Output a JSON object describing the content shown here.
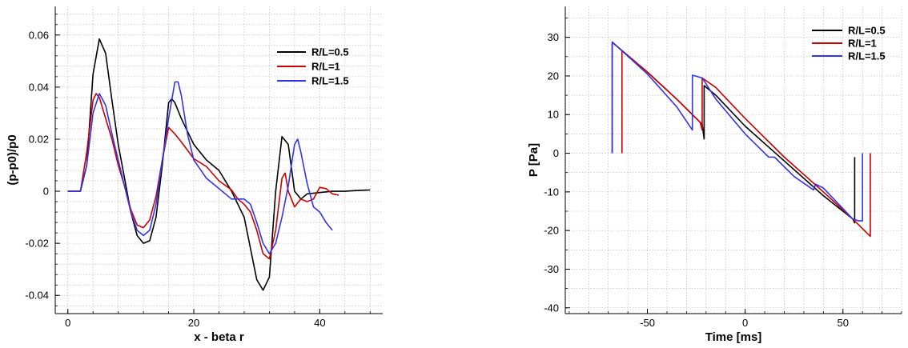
{
  "chart_data": [
    {
      "type": "line",
      "xlabel": "x - beta r",
      "ylabel": "(p-p0)/p0",
      "xlim": [
        -2,
        50
      ],
      "ylim": [
        -0.047,
        0.071
      ],
      "xticks": [
        0,
        20,
        40
      ],
      "xtick_labels": [
        "0",
        "20",
        "40"
      ],
      "yticks": [
        -0.04,
        -0.02,
        0,
        0.02,
        0.04,
        0.06
      ],
      "ytick_labels": [
        "-0.04",
        "-0.02",
        "0",
        "0.02",
        "0.04",
        "0.06"
      ],
      "grid": true,
      "legend_position": "top-right",
      "series": [
        {
          "name": "R/L=0.5",
          "color": "#000000",
          "points": [
            [
              0,
              0
            ],
            [
              2,
              0
            ],
            [
              3,
              0.01
            ],
            [
              4,
              0.045
            ],
            [
              5,
              0.0585
            ],
            [
              6,
              0.053
            ],
            [
              7,
              0.035
            ],
            [
              8,
              0.018
            ],
            [
              9,
              0.005
            ],
            [
              10,
              -0.008
            ],
            [
              11,
              -0.017
            ],
            [
              12,
              -0.02
            ],
            [
              13,
              -0.019
            ],
            [
              14,
              -0.01
            ],
            [
              15,
              0.01
            ],
            [
              16,
              0.034
            ],
            [
              16.5,
              0.0355
            ],
            [
              17,
              0.034
            ],
            [
              18,
              0.028
            ],
            [
              20,
              0.018
            ],
            [
              22,
              0.012
            ],
            [
              24,
              0.008
            ],
            [
              26,
              0.0
            ],
            [
              28,
              -0.01
            ],
            [
              29,
              -0.022
            ],
            [
              30,
              -0.034
            ],
            [
              31,
              -0.038
            ],
            [
              32,
              -0.033
            ],
            [
              33,
              0.0
            ],
            [
              34,
              0.021
            ],
            [
              35,
              0.018
            ],
            [
              36,
              0.0
            ],
            [
              37,
              -0.003
            ],
            [
              38,
              -0.001
            ],
            [
              40,
              -0.0005
            ],
            [
              42,
              0.0
            ],
            [
              44,
              0.0
            ],
            [
              46,
              0.0003
            ],
            [
              48,
              0.0005
            ]
          ]
        },
        {
          "name": "R/L=1",
          "color": "#cc0000",
          "points": [
            [
              0,
              0
            ],
            [
              2,
              0.0
            ],
            [
              3,
              0.015
            ],
            [
              4,
              0.035
            ],
            [
              4.5,
              0.0375
            ],
            [
              5,
              0.036
            ],
            [
              6,
              0.028
            ],
            [
              7,
              0.02
            ],
            [
              8,
              0.01
            ],
            [
              9,
              0.002
            ],
            [
              10,
              -0.007
            ],
            [
              11,
              -0.013
            ],
            [
              12,
              -0.014
            ],
            [
              13,
              -0.011
            ],
            [
              14,
              -0.002
            ],
            [
              15,
              0.012
            ],
            [
              16,
              0.0245
            ],
            [
              17,
              0.022
            ],
            [
              18,
              0.019
            ],
            [
              20,
              0.0125
            ],
            [
              22,
              0.0095
            ],
            [
              24,
              0.004
            ],
            [
              26,
              0.0005
            ],
            [
              27,
              -0.003
            ],
            [
              28,
              -0.005
            ],
            [
              29,
              -0.008
            ],
            [
              30,
              -0.015
            ],
            [
              31,
              -0.024
            ],
            [
              32,
              -0.026
            ],
            [
              33,
              -0.015
            ],
            [
              34,
              0.005
            ],
            [
              34.5,
              0.007
            ],
            [
              35,
              0.0
            ],
            [
              36,
              -0.006
            ],
            [
              37,
              -0.003
            ],
            [
              38,
              -0.004
            ],
            [
              39,
              -0.003
            ],
            [
              40,
              0.0015
            ],
            [
              41,
              0.001
            ],
            [
              42,
              -0.001
            ],
            [
              43,
              -0.0015
            ]
          ]
        },
        {
          "name": "R/L=1.5",
          "color": "#3333ee",
          "points": [
            [
              0,
              0
            ],
            [
              2,
              0.0
            ],
            [
              3,
              0.01
            ],
            [
              4,
              0.03
            ],
            [
              5,
              0.0375
            ],
            [
              6,
              0.033
            ],
            [
              7,
              0.022
            ],
            [
              8,
              0.012
            ],
            [
              9,
              0.002
            ],
            [
              10,
              -0.008
            ],
            [
              11,
              -0.015
            ],
            [
              12,
              -0.017
            ],
            [
              13,
              -0.015
            ],
            [
              14,
              -0.005
            ],
            [
              15,
              0.012
            ],
            [
              16,
              0.028
            ],
            [
              17,
              0.042
            ],
            [
              17.5,
              0.042
            ],
            [
              18,
              0.037
            ],
            [
              19,
              0.022
            ],
            [
              20,
              0.012
            ],
            [
              22,
              0.005
            ],
            [
              24,
              0.001
            ],
            [
              26,
              -0.003
            ],
            [
              28,
              -0.003
            ],
            [
              29,
              -0.005
            ],
            [
              30,
              -0.012
            ],
            [
              31,
              -0.02
            ],
            [
              32,
              -0.024
            ],
            [
              33,
              -0.02
            ],
            [
              34,
              -0.01
            ],
            [
              35,
              0.002
            ],
            [
              36,
              0.018
            ],
            [
              36.5,
              0.02
            ],
            [
              37,
              0.015
            ],
            [
              38,
              0.003
            ],
            [
              39,
              -0.006
            ],
            [
              40,
              -0.008
            ],
            [
              41,
              -0.012
            ],
            [
              42,
              -0.015
            ]
          ]
        }
      ]
    },
    {
      "type": "line",
      "xlabel": "Time [ms]",
      "ylabel": "P [Pa]",
      "xlim": [
        -92,
        80
      ],
      "ylim": [
        -41.5,
        38
      ],
      "xticks": [
        -50,
        0,
        50
      ],
      "xtick_labels": [
        "-50",
        "0",
        "50"
      ],
      "yticks": [
        -40,
        -30,
        -20,
        -10,
        0,
        10,
        20,
        30
      ],
      "ytick_labels": [
        "-40",
        "-30",
        "-20",
        "-10",
        "0",
        "10",
        "20",
        "30"
      ],
      "grid": true,
      "legend_position": "top-right",
      "series": [
        {
          "name": "R/L=0.5",
          "color": "#000000",
          "points": [
            [
              -68,
              0
            ],
            [
              -68,
              28.7
            ],
            [
              -50,
              21
            ],
            [
              -35,
              14
            ],
            [
              -22,
              7.5
            ],
            [
              -21,
              3.7
            ],
            [
              -21,
              17.5
            ],
            [
              -15,
              15
            ],
            [
              0,
              7
            ],
            [
              20,
              -2
            ],
            [
              40,
              -11
            ],
            [
              55,
              -17
            ],
            [
              56,
              -18
            ],
            [
              56,
              -1
            ]
          ]
        },
        {
          "name": "R/L=1",
          "color": "#cc0000",
          "points": [
            [
              -63,
              0
            ],
            [
              -63,
              26.5
            ],
            [
              -50,
              21
            ],
            [
              -35,
              14
            ],
            [
              -23,
              8
            ],
            [
              -22,
              6
            ],
            [
              -22,
              19.5
            ],
            [
              -15,
              17
            ],
            [
              0,
              9
            ],
            [
              20,
              -1
            ],
            [
              40,
              -10
            ],
            [
              55,
              -17
            ],
            [
              64,
              -21.5
            ],
            [
              64,
              0
            ]
          ]
        },
        {
          "name": "R/L=1.5",
          "color": "#3333ee",
          "points": [
            [
              -68,
              0
            ],
            [
              -68,
              28.8
            ],
            [
              -50,
              20.5
            ],
            [
              -35,
              12
            ],
            [
              -27,
              6
            ],
            [
              -27,
              20.2
            ],
            [
              -22,
              19.5
            ],
            [
              -15,
              14
            ],
            [
              0,
              5
            ],
            [
              10,
              0
            ],
            [
              12,
              -1
            ],
            [
              15,
              -1
            ],
            [
              25,
              -6
            ],
            [
              35,
              -9.5
            ],
            [
              36,
              -8
            ],
            [
              40,
              -9
            ],
            [
              55,
              -17
            ],
            [
              58,
              -17.5
            ],
            [
              60,
              -17.5
            ],
            [
              60,
              0
            ]
          ]
        }
      ]
    }
  ]
}
